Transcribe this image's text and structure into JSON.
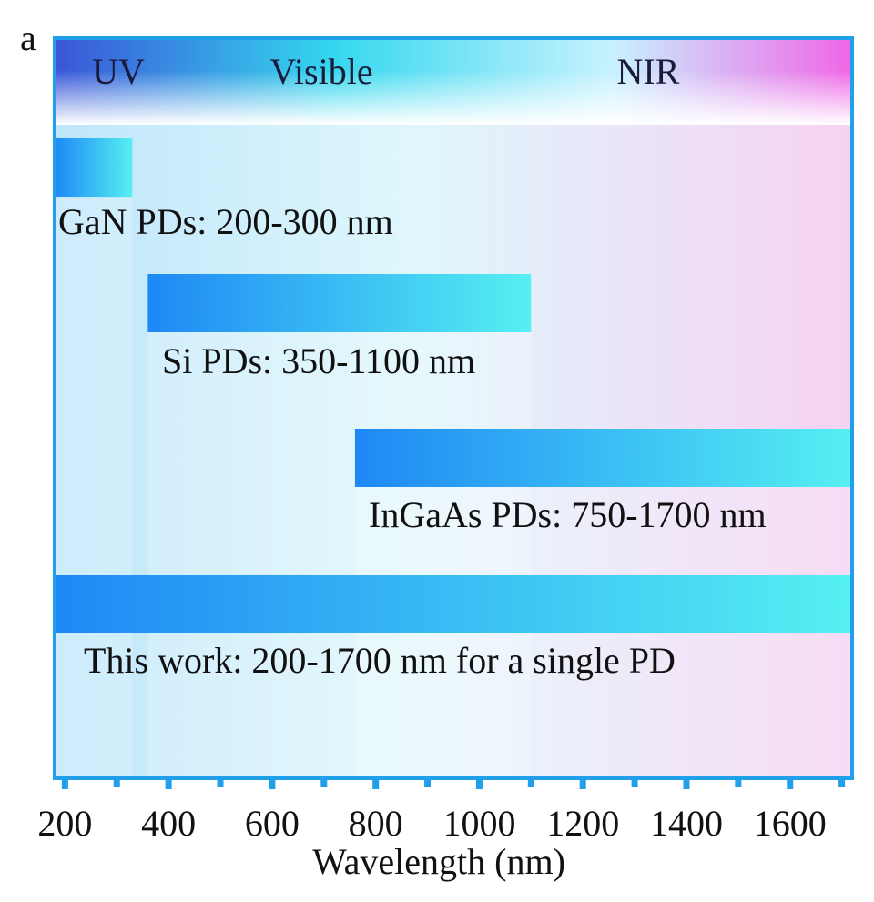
{
  "panel_letter": "a",
  "chart_data": {
    "type": "bar",
    "orientation": "horizontal-range",
    "title": "",
    "xlabel": "Wavelength (nm)",
    "ylabel": "",
    "xlim": [
      180,
      1720
    ],
    "xticks": [
      200,
      400,
      600,
      800,
      1000,
      1200,
      1400,
      1600
    ],
    "regions": [
      {
        "name": "UV",
        "range": [
          200,
          350
        ]
      },
      {
        "name": "Visible",
        "range": [
          350,
          750
        ]
      },
      {
        "name": "NIR",
        "range": [
          750,
          1700
        ]
      }
    ],
    "bars": [
      {
        "label": "GaN PDs: 200-300 nm",
        "start": 180,
        "end": 330
      },
      {
        "label": "Si PDs: 350-1100 nm",
        "start": 360,
        "end": 1100
      },
      {
        "label": "InGaAs PDs: 750-1700 nm",
        "start": 760,
        "end": 1720
      },
      {
        "label": "This work: 200-1700 nm for a single  PD",
        "start": 180,
        "end": 1720
      }
    ],
    "colors": {
      "bar_start": "#1e88f5",
      "bar_end": "#55f0f2",
      "frame": "#1fa0e8",
      "uv": "#3a55d8",
      "visible": "#34d8ee",
      "nir": "#f066e6"
    }
  }
}
